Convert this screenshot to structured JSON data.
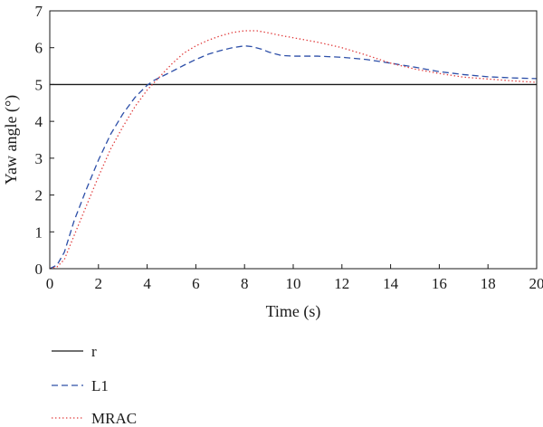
{
  "chart_data": {
    "type": "line",
    "title": "",
    "xlabel": "Time (s)",
    "ylabel": "Yaw angle (°)",
    "xlim": [
      0,
      20
    ],
    "ylim": [
      0,
      7
    ],
    "xticks": [
      0,
      2,
      4,
      6,
      8,
      10,
      12,
      14,
      16,
      18,
      20
    ],
    "yticks": [
      0,
      1,
      2,
      3,
      4,
      5,
      6,
      7
    ],
    "grid": false,
    "legend_position": "below-left",
    "series": [
      {
        "name": "r",
        "color": "#1a1a1a",
        "style": "solid",
        "x": [
          0,
          20
        ],
        "y": [
          5,
          5
        ]
      },
      {
        "name": "L1",
        "color": "#2d4fa8",
        "style": "dashed",
        "x": [
          0,
          0.3,
          0.6,
          1,
          1.5,
          2,
          2.5,
          3,
          3.5,
          4,
          4.3,
          4.7,
          5,
          5.5,
          6,
          6.5,
          7,
          7.5,
          8,
          8.3,
          8.7,
          9,
          9.5,
          10,
          11,
          12,
          13,
          14,
          15,
          16,
          17,
          18,
          19,
          20
        ],
        "y": [
          0,
          0.1,
          0.45,
          1.3,
          2.15,
          2.95,
          3.65,
          4.2,
          4.65,
          4.98,
          5.12,
          5.25,
          5.35,
          5.52,
          5.68,
          5.82,
          5.92,
          6.0,
          6.05,
          6.03,
          5.96,
          5.88,
          5.79,
          5.77,
          5.77,
          5.74,
          5.68,
          5.58,
          5.47,
          5.35,
          5.27,
          5.21,
          5.18,
          5.16
        ]
      },
      {
        "name": "MRAC",
        "color": "#e03a3a",
        "style": "dotted",
        "x": [
          0,
          0.3,
          0.6,
          1,
          1.5,
          2,
          2.5,
          3,
          3.5,
          4,
          4.5,
          5,
          5.5,
          6,
          6.5,
          7,
          7.5,
          8,
          8.5,
          9,
          9.5,
          10,
          11,
          12,
          13,
          14,
          15,
          16,
          17,
          18,
          19,
          20
        ],
        "y": [
          0,
          0.05,
          0.25,
          0.9,
          1.7,
          2.5,
          3.25,
          3.85,
          4.4,
          4.85,
          5.2,
          5.55,
          5.85,
          6.05,
          6.2,
          6.32,
          6.41,
          6.46,
          6.46,
          6.4,
          6.33,
          6.27,
          6.15,
          6.0,
          5.8,
          5.58,
          5.42,
          5.3,
          5.2,
          5.15,
          5.1,
          5.06
        ]
      }
    ]
  }
}
